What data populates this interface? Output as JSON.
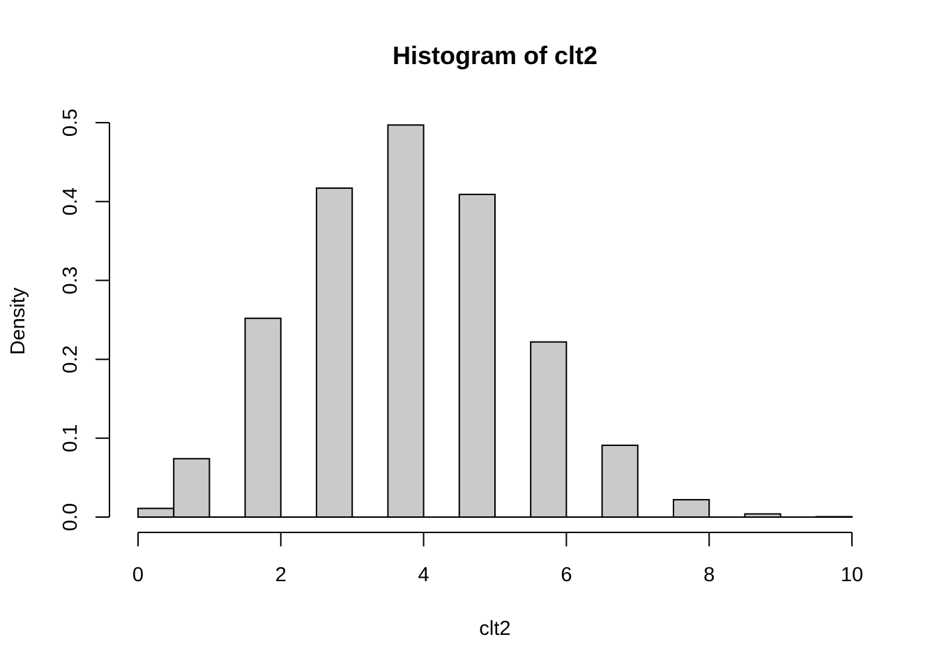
{
  "chart_data": {
    "type": "bar",
    "title": "Histogram of clt2",
    "xlabel": "clt2",
    "ylabel": "Density",
    "xlim": [
      0,
      10
    ],
    "ylim": [
      0,
      0.5
    ],
    "x_ticks": [
      "0",
      "2",
      "4",
      "6",
      "8",
      "10"
    ],
    "y_ticks": [
      "0.0",
      "0.1",
      "0.2",
      "0.3",
      "0.4",
      "0.5"
    ],
    "grid": false,
    "bar_color": "#cacaca",
    "bins": [
      {
        "x0": 0.0,
        "x1": 0.5,
        "density": 0.011
      },
      {
        "x0": 0.5,
        "x1": 1.0,
        "density": 0.074
      },
      {
        "x0": 1.5,
        "x1": 2.0,
        "density": 0.252
      },
      {
        "x0": 2.5,
        "x1": 3.0,
        "density": 0.417
      },
      {
        "x0": 3.5,
        "x1": 4.0,
        "density": 0.497
      },
      {
        "x0": 4.5,
        "x1": 5.0,
        "density": 0.409
      },
      {
        "x0": 5.5,
        "x1": 6.0,
        "density": 0.222
      },
      {
        "x0": 6.5,
        "x1": 7.0,
        "density": 0.091
      },
      {
        "x0": 7.5,
        "x1": 8.0,
        "density": 0.022
      },
      {
        "x0": 8.5,
        "x1": 9.0,
        "density": 0.004
      },
      {
        "x0": 9.5,
        "x1": 10.0,
        "density": 0.0005
      }
    ]
  }
}
